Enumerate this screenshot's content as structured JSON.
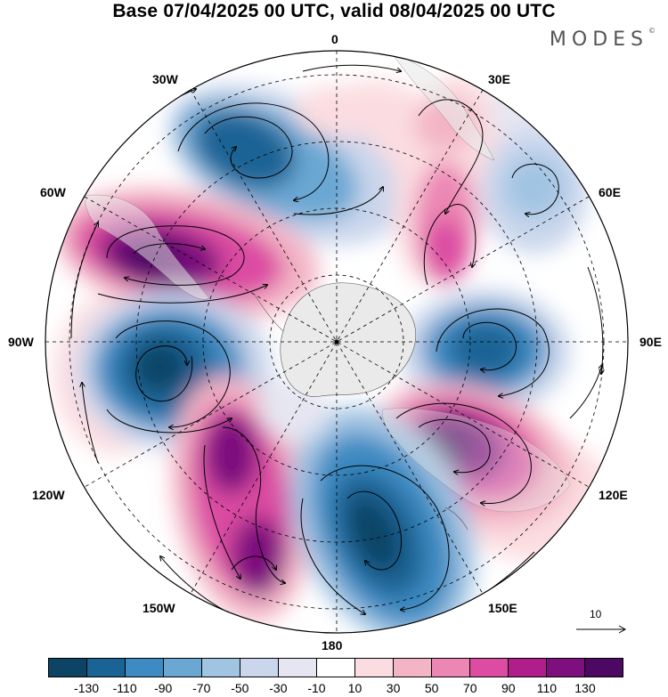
{
  "title": "Base 07/04/2025 00 UTC, valid 08/04/2025 00 UTC",
  "logo": {
    "text": "MODES",
    "mark": "©"
  },
  "longitude_labels": {
    "top": "0",
    "bottom": "180",
    "left": "90W",
    "right": "90E",
    "n30w": "30W",
    "n30e": "30E",
    "n60w": "60W",
    "n60e": "60E",
    "n120w": "120W",
    "n120e": "120E",
    "n150w": "150W",
    "n150e": "150E"
  },
  "reference_vector": {
    "label": "10"
  },
  "colorbar": {
    "colors": [
      "#0d4466",
      "#1a6395",
      "#3d8bc2",
      "#6aa7d3",
      "#a1c4e3",
      "#c9d6ec",
      "#e6e6f2",
      "#ffffff",
      "#fbdde1",
      "#f3b4c5",
      "#ec87b4",
      "#db4ca2",
      "#b01e8c",
      "#7d0f7e",
      "#4d0864"
    ],
    "ticks": [
      "-130",
      "-110",
      "-90",
      "-70",
      "-50",
      "-30",
      "-10",
      "10",
      "30",
      "50",
      "70",
      "90",
      "110",
      "130"
    ]
  },
  "colors": {
    "land": "#eaeaea",
    "outline": "#000000"
  }
}
